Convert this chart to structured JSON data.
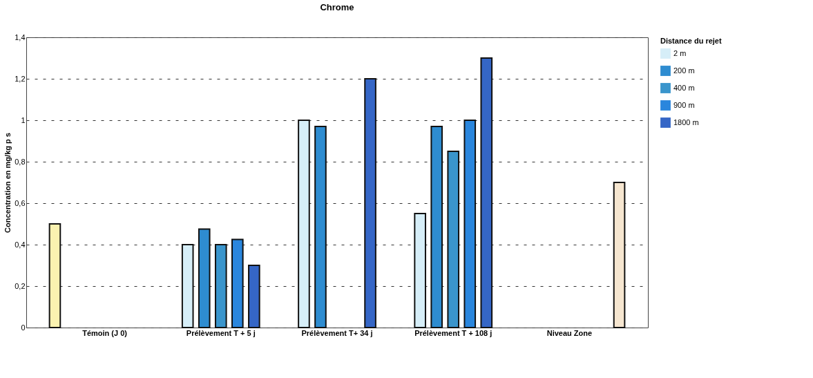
{
  "chart_data": {
    "type": "bar",
    "title": "Chrome",
    "ylabel": "Concentration en mg/kg p s",
    "legend_title": "Distance du rejet",
    "legend": "top right",
    "grid": "y",
    "categories": [
      "Témoin (J 0)",
      "Prélèvement T + 5 j",
      "Prélèvement T+ 34 j",
      "Prélèvement T + 108 j",
      "Niveau Zone"
    ],
    "ylim": [
      0,
      1.4
    ],
    "yticks": [
      0,
      {
        "value": 0.2,
        "label": "0,2"
      },
      {
        "value": 0.4,
        "label": "0,4"
      },
      {
        "value": 0.6,
        "label": "0,6"
      },
      {
        "value": 0.8,
        "label": "0,8"
      },
      1,
      {
        "value": 1.2,
        "label": "1,2"
      },
      {
        "value": 1.4,
        "label": "1,4"
      }
    ],
    "series": [
      {
        "color": "#faf2b0",
        "values": [
          0.5,
          null,
          null,
          null,
          null
        ]
      },
      {
        "name": "2 m",
        "color": "#d6eef8",
        "values": [
          null,
          0.4,
          1.0,
          0.55,
          null
        ]
      },
      {
        "name": "200 m",
        "color": "#2e8cd0",
        "values": [
          null,
          0.475,
          0.97,
          0.97,
          null
        ]
      },
      {
        "name": "400 m",
        "color": "#3a95cc",
        "values": [
          null,
          0.4,
          null,
          0.85,
          null
        ]
      },
      {
        "name": "900 m",
        "color": "#2a86dd",
        "values": [
          null,
          0.425,
          null,
          1.0,
          null
        ]
      },
      {
        "name": "1800 m",
        "color": "#3566c6",
        "values": [
          null,
          0.3,
          1.2,
          1.3,
          null
        ]
      },
      {
        "color": "#f6e6d0",
        "values": [
          null,
          null,
          null,
          null,
          0.7
        ]
      }
    ]
  }
}
